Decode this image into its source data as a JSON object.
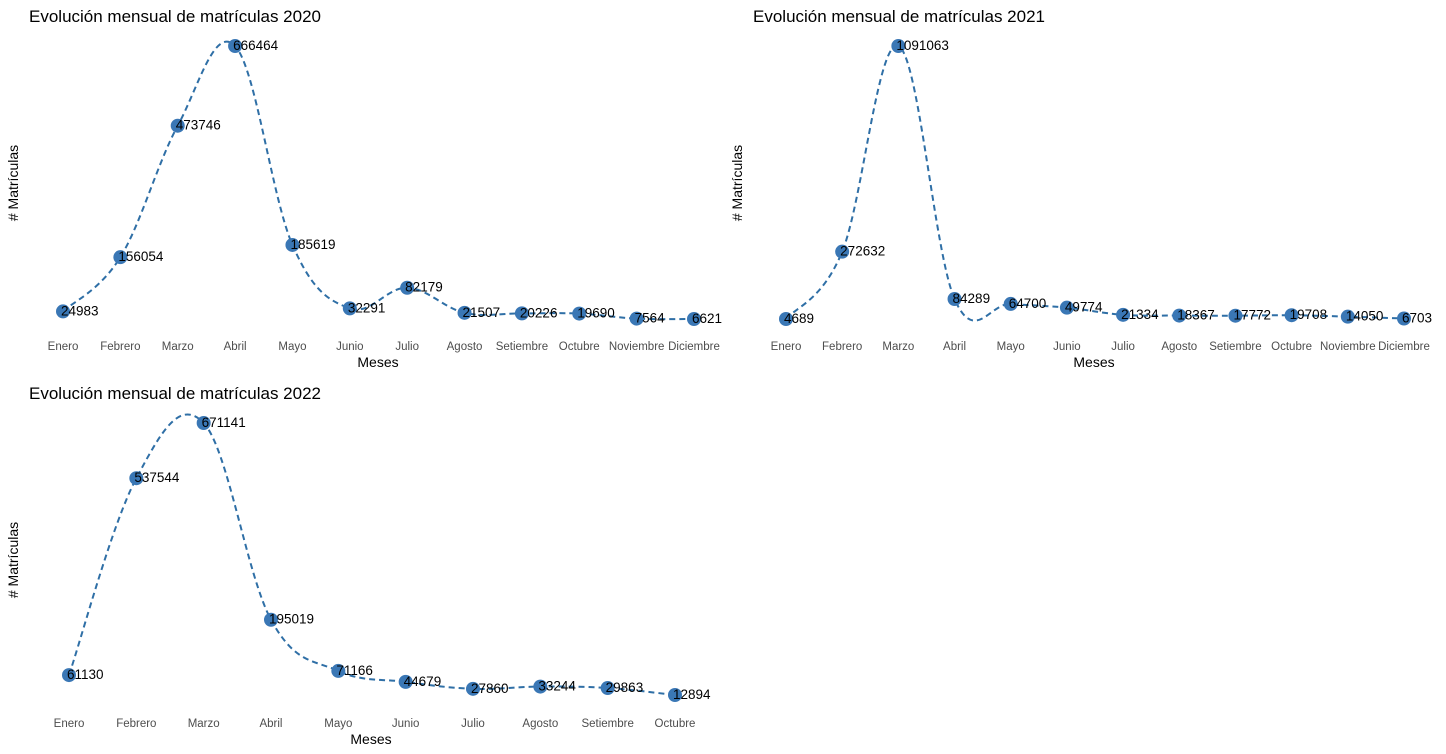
{
  "colors": {
    "point": "#3a77b5",
    "line": "#2f6fa6",
    "background": "#ffffff"
  },
  "chart_data": [
    {
      "type": "line",
      "title": "Evolución mensual de matrículas 2020",
      "xlabel": "Meses",
      "ylabel": "# Matrículas",
      "categories": [
        "Enero",
        "Febrero",
        "Marzo",
        "Abril",
        "Mayo",
        "Junio",
        "Julio",
        "Agosto",
        "Setiembre",
        "Octubre",
        "Noviembre",
        "Diciembre"
      ],
      "values": [
        24983,
        156054,
        473746,
        666464,
        185619,
        32291,
        82179,
        21507,
        20226,
        19690,
        7564,
        6621
      ],
      "grid": false,
      "legend": "none"
    },
    {
      "type": "line",
      "title": "Evolución mensual de matrículas 2021",
      "xlabel": "Meses",
      "ylabel": "# Matrículas",
      "categories": [
        "Enero",
        "Febrero",
        "Marzo",
        "Abril",
        "Mayo",
        "Junio",
        "Julio",
        "Agosto",
        "Setiembre",
        "Octubre",
        "Noviembre",
        "Diciembre"
      ],
      "values": [
        4689,
        272632,
        1091063,
        84289,
        64700,
        49774,
        21334,
        18367,
        17772,
        19708,
        14050,
        6703
      ],
      "grid": false,
      "legend": "none"
    },
    {
      "type": "line",
      "title": "Evolución mensual de matrículas 2022",
      "xlabel": "Meses",
      "ylabel": "# Matrículas",
      "categories": [
        "Enero",
        "Febrero",
        "Marzo",
        "Abril",
        "Mayo",
        "Junio",
        "Julio",
        "Agosto",
        "Setiembre",
        "Octubre"
      ],
      "values": [
        61130,
        537544,
        671141,
        195019,
        71166,
        44679,
        27860,
        33244,
        29863,
        12894
      ],
      "grid": false,
      "legend": "none"
    }
  ]
}
